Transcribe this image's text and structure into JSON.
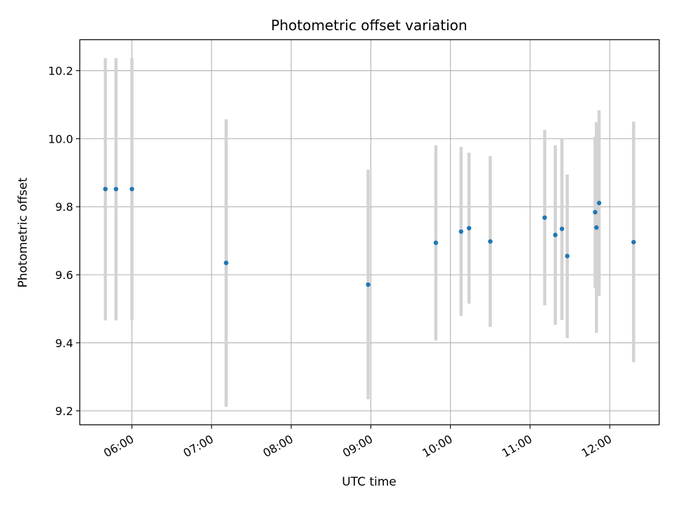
{
  "chart_data": {
    "type": "scatter",
    "title": "Photometric offset variation",
    "xlabel": "UTC time",
    "ylabel": "Photometric offset",
    "x_ticks": [
      "06:00",
      "07:00",
      "08:00",
      "09:00",
      "10:00",
      "11:00",
      "12:00"
    ],
    "y_ticks": [
      "9.2",
      "9.4",
      "9.6",
      "9.8",
      "10.0",
      "10.2"
    ],
    "xlim": [
      "05:21",
      "12:37"
    ],
    "ylim": [
      9.16,
      10.29
    ],
    "grid": true,
    "colors": {
      "point": "#1f77b4",
      "errorbar": "#d3d3d3",
      "grid": "#b0b0b0"
    },
    "points": [
      {
        "x": "05:40",
        "y": 9.852,
        "y_low": 9.466,
        "y_high": 10.237
      },
      {
        "x": "05:48",
        "y": 9.852,
        "y_low": 9.466,
        "y_high": 10.237
      },
      {
        "x": "06:00",
        "y": 9.852,
        "y_low": 9.466,
        "y_high": 10.237
      },
      {
        "x": "07:11",
        "y": 9.635,
        "y_low": 9.212,
        "y_high": 10.057
      },
      {
        "x": "08:58",
        "y": 9.571,
        "y_low": 9.234,
        "y_high": 9.909
      },
      {
        "x": "09:49",
        "y": 9.694,
        "y_low": 9.407,
        "y_high": 9.981
      },
      {
        "x": "10:08",
        "y": 9.727,
        "y_low": 9.479,
        "y_high": 9.976
      },
      {
        "x": "10:14",
        "y": 9.737,
        "y_low": 9.515,
        "y_high": 9.959
      },
      {
        "x": "10:30",
        "y": 9.698,
        "y_low": 9.447,
        "y_high": 9.949
      },
      {
        "x": "11:11",
        "y": 9.768,
        "y_low": 9.51,
        "y_high": 10.026
      },
      {
        "x": "11:19",
        "y": 9.717,
        "y_low": 9.453,
        "y_high": 9.981
      },
      {
        "x": "11:24",
        "y": 9.735,
        "y_low": 9.467,
        "y_high": 10.002
      },
      {
        "x": "11:28",
        "y": 9.655,
        "y_low": 9.414,
        "y_high": 9.895
      },
      {
        "x": "11:49",
        "y": 9.784,
        "y_low": 9.561,
        "y_high": 10.006
      },
      {
        "x": "11:50",
        "y": 9.739,
        "y_low": 9.429,
        "y_high": 10.049
      },
      {
        "x": "11:52",
        "y": 9.811,
        "y_low": 9.538,
        "y_high": 10.084
      },
      {
        "x": "12:18",
        "y": 9.696,
        "y_low": 9.343,
        "y_high": 10.05
      }
    ]
  }
}
